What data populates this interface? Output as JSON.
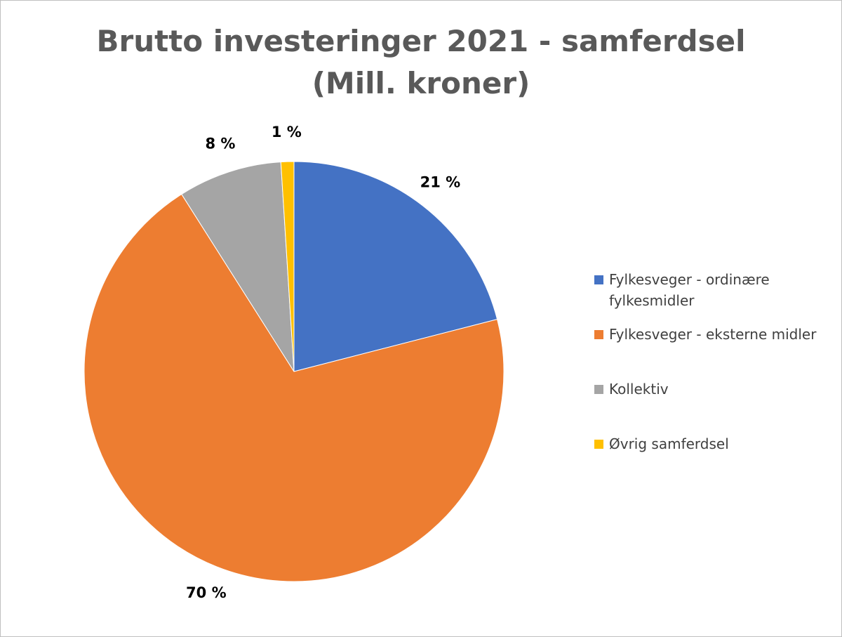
{
  "chart_data": {
    "type": "pie",
    "title": "Brutto investeringer 2021 - samferdsel",
    "subtitle": "(Mill. kroner)",
    "categories": [
      "Fylkesveger - ordinære fylkesmidler",
      "Fylkesveger - eksterne midler",
      "Kollektiv",
      "Øvrig samferdsel"
    ],
    "values": [
      21,
      70,
      8,
      1
    ],
    "value_labels": [
      "21 %",
      "70 %",
      "8 %",
      "1 %"
    ],
    "colors": [
      "#4472c4",
      "#ed7d31",
      "#a5a5a5",
      "#ffc000"
    ],
    "legend": "right"
  }
}
